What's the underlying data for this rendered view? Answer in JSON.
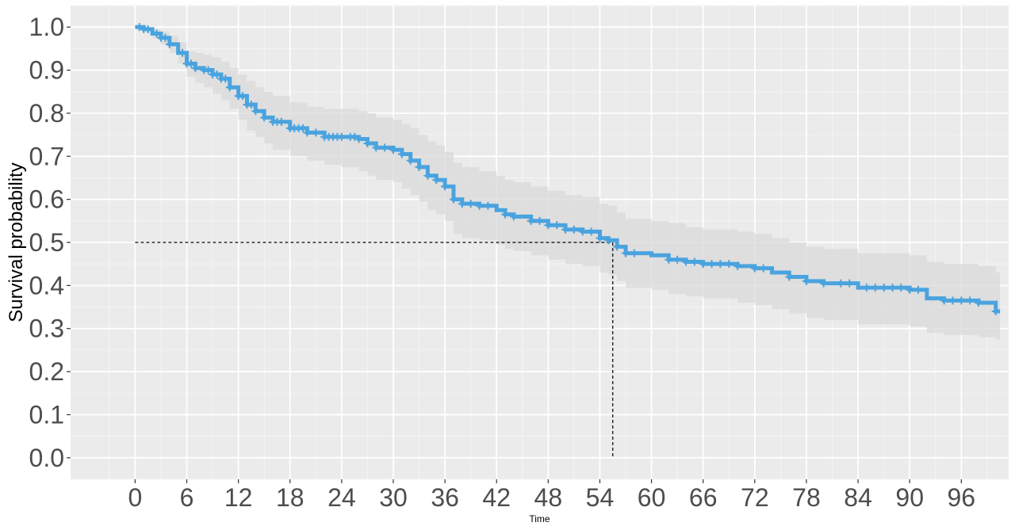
{
  "chart_data": {
    "type": "line",
    "subtype": "kaplan-meier survival curve with confidence band",
    "xlabel": "Time",
    "ylabel": "Survival probability",
    "xlim": [
      -7.5,
      101.5
    ],
    "ylim": [
      -0.05,
      1.05
    ],
    "x_ticks": [
      0,
      6,
      12,
      18,
      24,
      30,
      36,
      42,
      48,
      54,
      60,
      66,
      72,
      78,
      84,
      90,
      96
    ],
    "y_ticks": [
      0.0,
      0.1,
      0.2,
      0.3,
      0.4,
      0.5,
      0.6,
      0.7,
      0.8,
      0.9,
      1.0
    ],
    "y_tick_labels": [
      "0.0",
      "0.1",
      "0.2",
      "0.3",
      "0.4",
      "0.5",
      "0.6",
      "0.7",
      "0.8",
      "0.9",
      "1.0"
    ],
    "grid": true,
    "background_color": "#ebebeb",
    "series_color": "#4aa3df",
    "band_color": "#d9d9d9",
    "median_survival": {
      "time": 55.5,
      "probability": 0.5
    },
    "series": [
      {
        "x": [
          0,
          1,
          2,
          3,
          4,
          5,
          6,
          7,
          8,
          9,
          10,
          11,
          12,
          13,
          14,
          15,
          16,
          18,
          20,
          22,
          24,
          26,
          27,
          28,
          30,
          31,
          32,
          33,
          34,
          35,
          36,
          37,
          38,
          40,
          42,
          43,
          44,
          46,
          48,
          50,
          52,
          54,
          55,
          56,
          57,
          60,
          62,
          64,
          66,
          70,
          72,
          74,
          76,
          78,
          80,
          84,
          88,
          90,
          92,
          94,
          98,
          100
        ],
        "y": [
          1.0,
          0.995,
          0.985,
          0.975,
          0.96,
          0.94,
          0.915,
          0.905,
          0.9,
          0.89,
          0.88,
          0.86,
          0.84,
          0.82,
          0.805,
          0.79,
          0.78,
          0.765,
          0.755,
          0.745,
          0.745,
          0.74,
          0.73,
          0.72,
          0.715,
          0.705,
          0.69,
          0.675,
          0.655,
          0.645,
          0.63,
          0.6,
          0.59,
          0.585,
          0.575,
          0.565,
          0.56,
          0.55,
          0.54,
          0.53,
          0.525,
          0.51,
          0.505,
          0.49,
          0.475,
          0.47,
          0.46,
          0.455,
          0.45,
          0.445,
          0.44,
          0.43,
          0.42,
          0.41,
          0.405,
          0.395,
          0.395,
          0.39,
          0.37,
          0.365,
          0.36,
          0.34
        ],
        "lower": [
          1.0,
          0.99,
          0.975,
          0.96,
          0.94,
          0.915,
          0.885,
          0.87,
          0.86,
          0.845,
          0.83,
          0.81,
          0.785,
          0.76,
          0.745,
          0.73,
          0.715,
          0.7,
          0.69,
          0.68,
          0.675,
          0.665,
          0.655,
          0.645,
          0.64,
          0.625,
          0.61,
          0.595,
          0.575,
          0.565,
          0.55,
          0.52,
          0.51,
          0.505,
          0.495,
          0.485,
          0.48,
          0.47,
          0.46,
          0.45,
          0.445,
          0.43,
          0.425,
          0.41,
          0.395,
          0.39,
          0.38,
          0.375,
          0.37,
          0.36,
          0.355,
          0.345,
          0.335,
          0.325,
          0.32,
          0.31,
          0.31,
          0.305,
          0.29,
          0.285,
          0.28,
          0.275
        ],
        "upper": [
          1.0,
          1.0,
          0.995,
          0.99,
          0.98,
          0.965,
          0.945,
          0.94,
          0.935,
          0.93,
          0.92,
          0.905,
          0.89,
          0.875,
          0.86,
          0.85,
          0.84,
          0.825,
          0.815,
          0.81,
          0.81,
          0.805,
          0.8,
          0.79,
          0.785,
          0.775,
          0.765,
          0.75,
          0.735,
          0.725,
          0.71,
          0.685,
          0.675,
          0.665,
          0.655,
          0.645,
          0.64,
          0.63,
          0.62,
          0.61,
          0.605,
          0.59,
          0.585,
          0.57,
          0.555,
          0.55,
          0.545,
          0.535,
          0.53,
          0.525,
          0.52,
          0.51,
          0.5,
          0.49,
          0.485,
          0.475,
          0.475,
          0.47,
          0.455,
          0.45,
          0.445,
          0.43
        ]
      }
    ],
    "censor_times": [
      0.5,
      1,
      1.5,
      2.5,
      3,
      3.5,
      4,
      5.5,
      6,
      6.5,
      7,
      8,
      8.5,
      9,
      9.5,
      10,
      10.5,
      11,
      12,
      12.5,
      13,
      13.5,
      14,
      15,
      16,
      16.5,
      17,
      18,
      18.5,
      19,
      19.5,
      20,
      21,
      22,
      22.5,
      23,
      23.5,
      24,
      25,
      25.5,
      26,
      27,
      28,
      29,
      30,
      31,
      32,
      33,
      34,
      35,
      36,
      37,
      38,
      39,
      40,
      41,
      43,
      44,
      46,
      47,
      48,
      49,
      50,
      51,
      52,
      53,
      54,
      55,
      56,
      57,
      58,
      62,
      63,
      64,
      65,
      66,
      67,
      68,
      69,
      70,
      72,
      73,
      76,
      78,
      80,
      82,
      83,
      85,
      86,
      87,
      88,
      89,
      90,
      91,
      94,
      95,
      96,
      97,
      98,
      100
    ]
  }
}
